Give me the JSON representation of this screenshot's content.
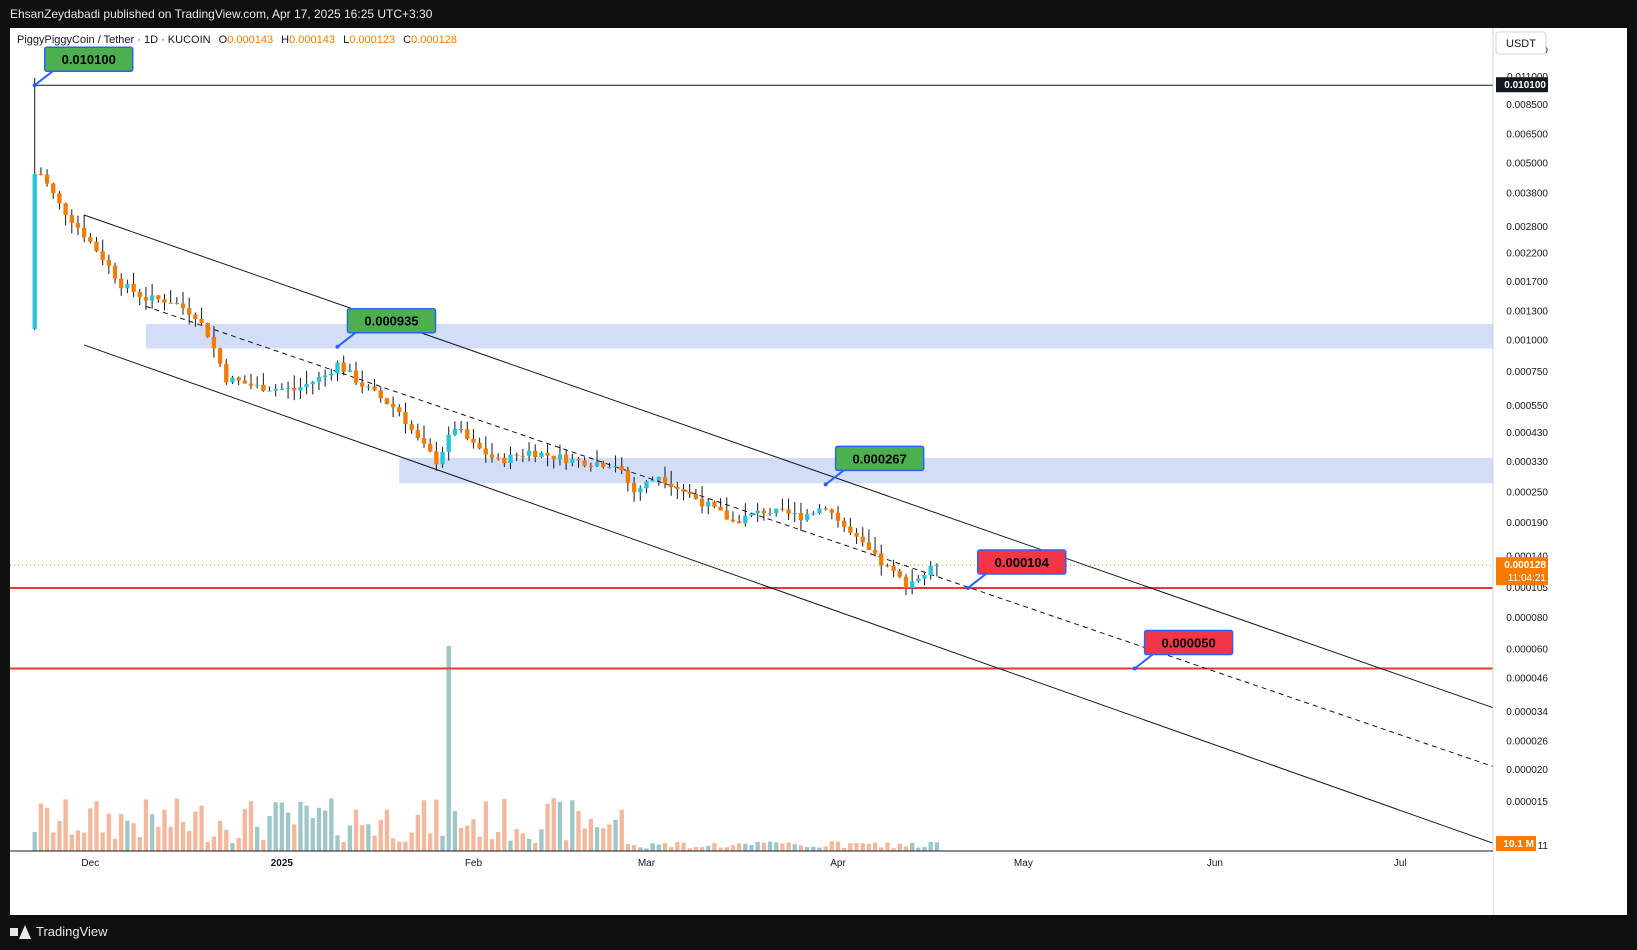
{
  "publisher": "EhsanZeydabadi published on TradingView.com, Apr 17, 2025 16:25 UTC+3:30",
  "brand": "TradingView",
  "legend": {
    "symbol": "PiggyPiggyCoin / Tether · 1D · KUCOIN",
    "o_label": "O",
    "o_value": "0.000143",
    "h_label": "H",
    "h_value": "0.000143",
    "l_label": "L",
    "l_value": "0.000123",
    "c_label": "C",
    "c_value": "0.000128"
  },
  "price_axis": {
    "currency": "USDT",
    "ticks": [
      "0.014000",
      "0.011000",
      "0.008500",
      "0.006500",
      "0.005000",
      "0.003800",
      "0.002800",
      "0.002200",
      "0.001700",
      "0.001300",
      "0.001000",
      "0.000750",
      "0.000550",
      "0.000430",
      "0.000330",
      "0.000250",
      "0.000190",
      "0.000140",
      "0.000105",
      "0.000080",
      "0.000060",
      "0.000046",
      "0.000034",
      "0.000026",
      "0.000020",
      "0.000015",
      "11"
    ],
    "ath_label": "0.010100",
    "current_price": "0.000128",
    "countdown": "11:04:21",
    "volume_label": "10.1 M"
  },
  "time_axis": [
    "Dec",
    "2025",
    "Feb",
    "Mar",
    "Apr",
    "May",
    "Jun",
    "Jul"
  ],
  "callouts": [
    {
      "label": "0.010100",
      "kind": "green"
    },
    {
      "label": "0.000935",
      "kind": "green"
    },
    {
      "label": "0.000267",
      "kind": "green"
    },
    {
      "label": "0.000104",
      "kind": "red"
    },
    {
      "label": "0.000050",
      "kind": "red"
    }
  ],
  "colors": {
    "up": "#26c6da",
    "down": "#f57c00",
    "vol_up": "#9fc7c9",
    "vol_down": "#f4b89c",
    "zone": "#d3ddf7",
    "support": "#e53935",
    "callout_green": "#4caf50",
    "callout_red": "#f23645",
    "callout_border": "#2962ff"
  },
  "chart_data": {
    "type": "candlestick",
    "log_scale": true,
    "ylim": [
      9.5e-06,
      0.017
    ],
    "x_range": [
      "2024-11-18",
      "2025-07-16"
    ],
    "ohlc_anchors": [
      {
        "date": "2024-11-22",
        "value": 0.0101
      },
      {
        "date": "2024-11-23",
        "value": 0.0045
      },
      {
        "date": "2024-11-26",
        "value": 0.0034
      },
      {
        "date": "2024-11-30",
        "value": 0.0026
      },
      {
        "date": "2024-12-03",
        "value": 0.0021
      },
      {
        "date": "2024-12-06",
        "value": 0.00165
      },
      {
        "date": "2024-12-10",
        "value": 0.00145
      },
      {
        "date": "2024-12-14",
        "value": 0.00142
      },
      {
        "date": "2024-12-18",
        "value": 0.00125
      },
      {
        "date": "2024-12-20",
        "value": 0.00105
      },
      {
        "date": "2024-12-23",
        "value": 0.0007
      },
      {
        "date": "2024-12-28",
        "value": 0.00065
      },
      {
        "date": "2025-01-03",
        "value": 0.00063
      },
      {
        "date": "2025-01-08",
        "value": 0.00072
      },
      {
        "date": "2025-01-10",
        "value": 0.0008
      },
      {
        "date": "2025-01-14",
        "value": 0.00066
      },
      {
        "date": "2025-01-20",
        "value": 0.00052
      },
      {
        "date": "2025-01-23",
        "value": 0.0004
      },
      {
        "date": "2025-01-26",
        "value": 0.00033
      },
      {
        "date": "2025-01-29",
        "value": 0.00045
      },
      {
        "date": "2025-02-01",
        "value": 0.00038
      },
      {
        "date": "2025-02-05",
        "value": 0.00033
      },
      {
        "date": "2025-02-10",
        "value": 0.00036
      },
      {
        "date": "2025-02-18",
        "value": 0.00033
      },
      {
        "date": "2025-02-24",
        "value": 0.00032
      },
      {
        "date": "2025-02-27",
        "value": 0.00025
      },
      {
        "date": "2025-03-03",
        "value": 0.00029
      },
      {
        "date": "2025-03-06",
        "value": 0.00026
      },
      {
        "date": "2025-03-11",
        "value": 0.00022
      },
      {
        "date": "2025-03-15",
        "value": 0.00019
      },
      {
        "date": "2025-03-20",
        "value": 0.00021
      },
      {
        "date": "2025-03-26",
        "value": 0.0002
      },
      {
        "date": "2025-03-30",
        "value": 0.00022
      },
      {
        "date": "2025-04-03",
        "value": 0.00017
      },
      {
        "date": "2025-04-08",
        "value": 0.00013
      },
      {
        "date": "2025-04-12",
        "value": 0.000108
      },
      {
        "date": "2025-04-15",
        "value": 0.000118
      },
      {
        "date": "2025-04-17",
        "value": 0.000128
      }
    ],
    "key_levels": [
      {
        "label": "0.010100",
        "value": 0.0101,
        "date": "2024-11-22",
        "role": "all-time high"
      },
      {
        "label": "0.000935",
        "value": 0.000935,
        "date": "2025-01-10",
        "role": "lower high"
      },
      {
        "label": "0.000267",
        "value": 0.000267,
        "date": "2025-03-30",
        "role": "lower high"
      },
      {
        "label": "0.000104",
        "value": 0.000104,
        "date": "2025-04-22",
        "role": "support"
      },
      {
        "label": "0.000050",
        "value": 5e-05,
        "date": "2025-05-19",
        "role": "target"
      }
    ],
    "zones": [
      {
        "from": "2024-12-10",
        "low": 0.00092,
        "high": 0.00115
      },
      {
        "from": "2025-01-20",
        "low": 0.00027,
        "high": 0.00034
      }
    ],
    "channel": {
      "upper": [
        {
          "date": "2024-11-30",
          "value": 0.0031
        },
        {
          "date": "2025-07-16",
          "value": 3.5e-05
        }
      ],
      "middle": [
        {
          "date": "2024-12-10",
          "value": 0.00135
        },
        {
          "date": "2025-07-16",
          "value": 2.05e-05
        }
      ],
      "lower": [
        {
          "date": "2024-11-30",
          "value": 0.00095
        },
        {
          "date": "2025-07-16",
          "value": 1.02e-05
        }
      ]
    },
    "volume_peak_date": "2025-01-28"
  }
}
